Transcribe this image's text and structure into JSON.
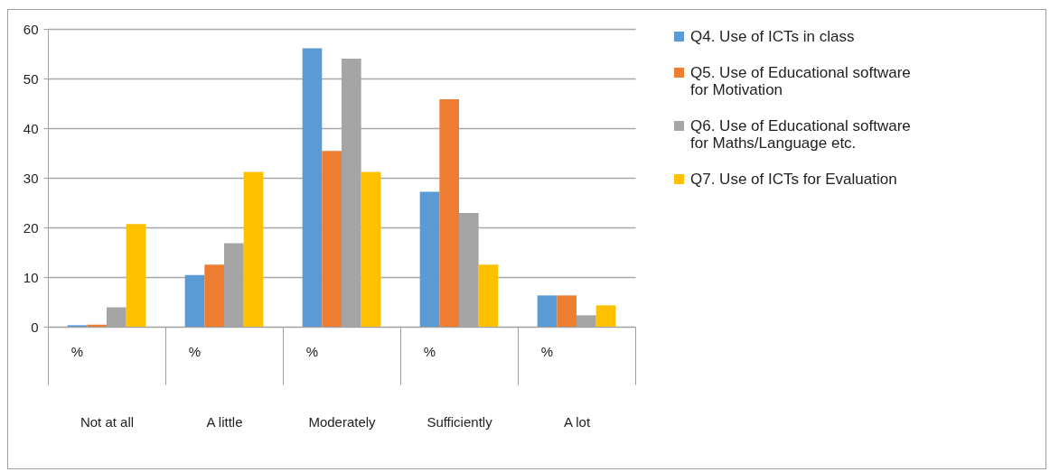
{
  "chart_data": {
    "type": "bar",
    "categories": [
      "Not at all",
      "A little",
      "Moderately",
      "Sufficiently",
      "A lot"
    ],
    "series": [
      {
        "name": "Q4. Use of ICTs in class",
        "color": "#5b9bd5",
        "values": [
          0.3,
          10.4,
          56.1,
          27.2,
          6.3
        ]
      },
      {
        "name": "Q5. Use of Educational software for Motivation",
        "color": "#ed7d31",
        "values": [
          0.4,
          12.5,
          35.4,
          45.8,
          6.3
        ]
      },
      {
        "name": "Q6. Use of Educational software for Maths/Language etc.",
        "color": "#a5a5a5",
        "values": [
          3.9,
          16.8,
          54,
          22.9,
          2.3
        ]
      },
      {
        "name": "Q7. Use of ICTs for Evaluation",
        "color": "#ffc000",
        "values": [
          20.7,
          31.2,
          31.2,
          12.5,
          4.3
        ]
      }
    ],
    "annotations": [
      "%",
      "%",
      "%",
      "%",
      "%"
    ],
    "ylim": [
      0,
      60
    ],
    "yticks": [
      0,
      10,
      20,
      30,
      40,
      50,
      60
    ],
    "grid": "y",
    "legend": "right"
  }
}
